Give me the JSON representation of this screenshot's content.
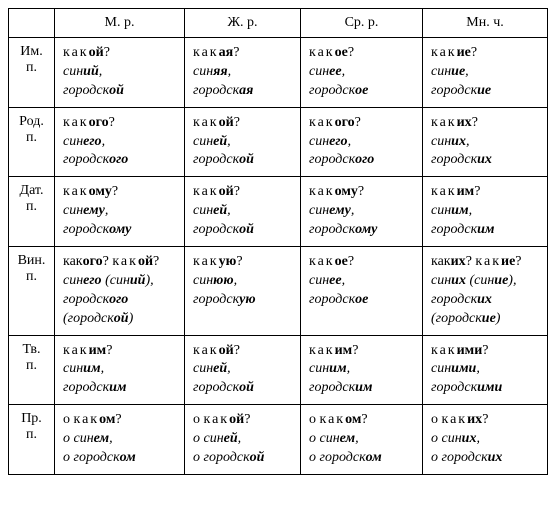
{
  "header": {
    "blank": "",
    "cols": [
      "М. р.",
      "Ж. р.",
      "Ср. р.",
      "Мн. ч."
    ]
  },
  "rows": [
    {
      "case_line1": "Им.",
      "case_line2": "п.",
      "cells": [
        {
          "lines": [
            {
              "html": "<span class='sp'>как</span><b>ой</b>?"
            },
            {
              "html": "<i>син<b>ий</b>,</i>"
            },
            {
              "html": "<i>городск<b>ой</b></i>"
            }
          ]
        },
        {
          "lines": [
            {
              "html": "<span class='sp'>как</span><b>ая</b>?"
            },
            {
              "html": "<i>син<b>яя</b>,</i>"
            },
            {
              "html": "<i>городск<b>ая</b></i>"
            }
          ]
        },
        {
          "lines": [
            {
              "html": "<span class='sp'>как</span><b>ое</b>?"
            },
            {
              "html": "<i>син<b>ее</b>,</i>"
            },
            {
              "html": "<i>городск<b>ое</b></i>"
            }
          ]
        },
        {
          "lines": [
            {
              "html": "<span class='sp'>как</span><b>ие</b>?"
            },
            {
              "html": "<i>син<b>ие</b>,</i>"
            },
            {
              "html": "<i>городск<b>ие</b></i>"
            }
          ]
        }
      ]
    },
    {
      "case_line1": "Род.",
      "case_line2": "п.",
      "cells": [
        {
          "lines": [
            {
              "html": "<span class='sp'>как</span><b>ого</b>?"
            },
            {
              "html": "<i>син<b>его</b>,</i>"
            },
            {
              "html": "<i>городск<b>ого</b></i>"
            }
          ]
        },
        {
          "lines": [
            {
              "html": "<span class='sp'>как</span><b>ой</b>?"
            },
            {
              "html": "<i>син<b>ей</b>,</i>"
            },
            {
              "html": "<i>городск<b>ой</b></i>"
            }
          ]
        },
        {
          "lines": [
            {
              "html": "<span class='sp'>как</span><b>ого</b>?"
            },
            {
              "html": "<i>син<b>его</b>,</i>"
            },
            {
              "html": "<i>городск<b>ого</b></i>"
            }
          ]
        },
        {
          "lines": [
            {
              "html": "<span class='sp'>как</span><b>их</b>?"
            },
            {
              "html": "<i>син<b>их</b>,</i>"
            },
            {
              "html": "<i>городск<b>их</b></i>"
            }
          ]
        }
      ]
    },
    {
      "case_line1": "Дат.",
      "case_line2": "п.",
      "cells": [
        {
          "lines": [
            {
              "html": "<span class='sp'>как</span><b>ому</b>?"
            },
            {
              "html": "<i>син<b>ему</b>,</i>"
            },
            {
              "html": "<i>городск<b>ому</b></i>"
            }
          ]
        },
        {
          "lines": [
            {
              "html": "<span class='sp'>как</span><b>ой</b>?"
            },
            {
              "html": "<i>син<b>ей</b>,</i>"
            },
            {
              "html": "<i>городск<b>ой</b></i>"
            }
          ]
        },
        {
          "lines": [
            {
              "html": "<span class='sp'>как</span><b>ому</b>?"
            },
            {
              "html": "<i>син<b>ему</b>,</i>"
            },
            {
              "html": "<i>городск<b>ому</b></i>"
            }
          ]
        },
        {
          "lines": [
            {
              "html": "<span class='sp'>как</span><b>им</b>?"
            },
            {
              "html": "<i>син<b>им</b>,</i>"
            },
            {
              "html": "<i>городск<b>им</b></i>"
            }
          ]
        }
      ]
    },
    {
      "case_line1": "Вин.",
      "case_line2": "п.",
      "cells": [
        {
          "lines": [
            {
              "html": "как<b>ого</b>? <span class='sp'>как</span><b>ой</b>?"
            },
            {
              "html": "<i>син<b>его</b> (син<b>ий</b>),</i>"
            },
            {
              "html": "<i>городск<b>ого</b></i>"
            },
            {
              "html": "<i>(городск<b>ой</b>)</i>"
            }
          ]
        },
        {
          "lines": [
            {
              "html": "<span class='sp'>как</span><b>ую</b>?"
            },
            {
              "html": "<i>син<b>юю</b>,</i>"
            },
            {
              "html": "<i>городск<b>ую</b></i>"
            }
          ]
        },
        {
          "lines": [
            {
              "html": "<span class='sp'>как</span><b>ое</b>?"
            },
            {
              "html": "<i>син<b>ее</b>,</i>"
            },
            {
              "html": "<i>городск<b>ое</b></i>"
            }
          ]
        },
        {
          "lines": [
            {
              "html": "как<b>их</b>? <span class='sp'>как</span><b>ие</b>?"
            },
            {
              "html": "<i>син<b>их</b> (син<b>ие</b>),</i>"
            },
            {
              "html": "<i>городск<b>их</b></i>"
            },
            {
              "html": "<i>(городск<b>ие</b>)</i>"
            }
          ]
        }
      ]
    },
    {
      "case_line1": "Тв.",
      "case_line2": "п.",
      "cells": [
        {
          "lines": [
            {
              "html": "<span class='sp'>как</span><b>им</b>?"
            },
            {
              "html": "<i>син<b>им</b>,</i>"
            },
            {
              "html": "<i>городск<b>им</b></i>"
            }
          ]
        },
        {
          "lines": [
            {
              "html": "<span class='sp'>как</span><b>ой</b>?"
            },
            {
              "html": "<i>син<b>ей</b>,</i>"
            },
            {
              "html": "<i>городск<b>ой</b></i>"
            }
          ]
        },
        {
          "lines": [
            {
              "html": "<span class='sp'>как</span><b>им</b>?"
            },
            {
              "html": "<i>син<b>им</b>,</i>"
            },
            {
              "html": "<i>городск<b>им</b></i>"
            }
          ]
        },
        {
          "lines": [
            {
              "html": "<span class='sp'>как</span><b>ими</b>?"
            },
            {
              "html": "<i>син<b>ими</b>,</i>"
            },
            {
              "html": "<i>городск<b>ими</b></i>"
            }
          ]
        }
      ]
    },
    {
      "case_line1": "Пр.",
      "case_line2": "п.",
      "cells": [
        {
          "lines": [
            {
              "html": "о <span class='sp'>как</span><b>ом</b>?"
            },
            {
              "html": "<i>о син<b>ем</b>,</i>"
            },
            {
              "html": "<i>о городск<b>ом</b></i>"
            }
          ]
        },
        {
          "lines": [
            {
              "html": "о <span class='sp'>как</span><b>ой</b>?"
            },
            {
              "html": "<i>о син<b>ей</b>,</i>"
            },
            {
              "html": "<i>о городск<b>ой</b></i>"
            }
          ]
        },
        {
          "lines": [
            {
              "html": "о <span class='sp'>как</span><b>ом</b>?"
            },
            {
              "html": "<i>о син<b>ем</b>,</i>"
            },
            {
              "html": "<i>о городск<b>ом</b></i>"
            }
          ]
        },
        {
          "lines": [
            {
              "html": "о <span class='sp'>как</span><b>их</b>?"
            },
            {
              "html": "<i>о син<b>их</b>,</i>"
            },
            {
              "html": "<i>о городск<b>их</b></i>"
            }
          ]
        }
      ]
    }
  ]
}
